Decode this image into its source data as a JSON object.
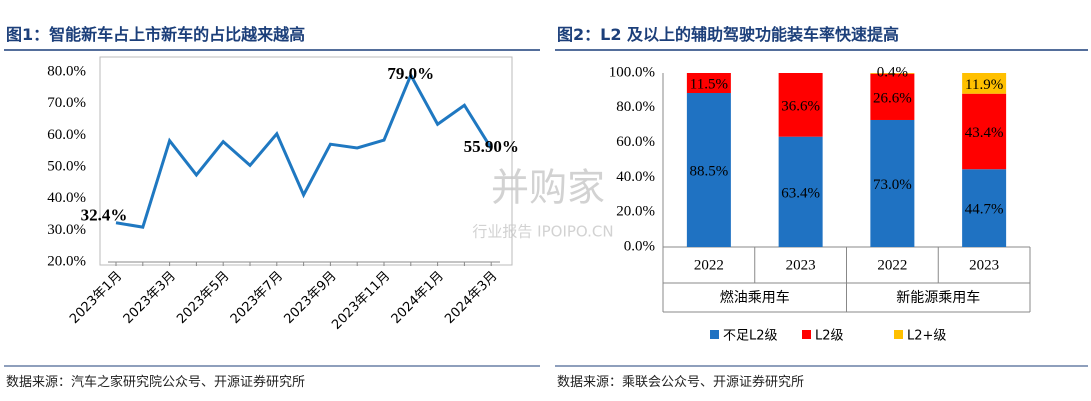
{
  "chart_data": [
    {
      "type": "line",
      "title": "图1：智能新车占上市新车的占比越来越高",
      "source": "数据来源：汽车之家研究院公众号、开源证券研究所",
      "categories": [
        "2023年1月",
        null,
        "2023年3月",
        null,
        "2023年5月",
        null,
        "2023年7月",
        null,
        "2023年9月",
        null,
        "2023年11月",
        null,
        "2024年1月",
        null,
        "2024年3月"
      ],
      "values": [
        32.4,
        31.0,
        58.3,
        47.5,
        58.0,
        50.5,
        60.5,
        41.2,
        57.2,
        56.0,
        58.5,
        79.0,
        63.5,
        69.5,
        55.9
      ],
      "value_labels": [
        "32.4%",
        null,
        null,
        null,
        null,
        null,
        null,
        null,
        null,
        null,
        null,
        "79.0%",
        null,
        null,
        "55.90%"
      ],
      "color": "#1f78c1",
      "ylim": [
        20,
        80
      ],
      "yticks": [
        {
          "value": 20,
          "label": "20.0%"
        },
        {
          "value": 30,
          "label": "30.0%"
        },
        {
          "value": 40,
          "label": "40.0%"
        },
        {
          "value": 50,
          "label": "50.0%"
        },
        {
          "value": 60,
          "label": "60.0%"
        },
        {
          "value": 70,
          "label": "70.0%"
        },
        {
          "value": 80,
          "label": "80.0%"
        }
      ]
    },
    {
      "type": "bar",
      "stacked": true,
      "title": "图2：L2 及以上的辅助驾驶功能装车率快速提高",
      "source": "数据来源：乘联会公众号、开源证券研究所",
      "categories": [
        "2022",
        "2023",
        "2022",
        "2023"
      ],
      "groups": [
        "燃油乘用车",
        "新能源乘用车"
      ],
      "series": [
        {
          "name": "不足L2级",
          "color": "#1f72c2",
          "values": [
            88.5,
            63.4,
            73.0,
            44.7
          ],
          "value_labels": [
            "88.5%",
            "63.4%",
            "73.0%",
            "44.7%"
          ]
        },
        {
          "name": "L2级",
          "color": "#ff0000",
          "values": [
            11.5,
            36.6,
            26.6,
            43.4
          ],
          "value_labels": [
            "11.5%",
            "36.6%",
            "26.6%",
            "43.4%"
          ]
        },
        {
          "name": "L2+级",
          "color": "#ffc000",
          "values": [
            null,
            null,
            0.4,
            11.9
          ],
          "value_labels": [
            null,
            null,
            "0.4%",
            "11.9%"
          ]
        }
      ],
      "ylim": [
        0,
        100
      ],
      "yticks": [
        {
          "value": 0,
          "label": "0.0%"
        },
        {
          "value": 20,
          "label": "20.0%"
        },
        {
          "value": 40,
          "label": "40.0%"
        },
        {
          "value": 60,
          "label": "60.0%"
        },
        {
          "value": 80,
          "label": "80.0%"
        },
        {
          "value": 100,
          "label": "100.0%"
        }
      ]
    }
  ],
  "watermark": {
    "main": "并购家",
    "sub": "行业报告 IPOIPO.CN"
  }
}
